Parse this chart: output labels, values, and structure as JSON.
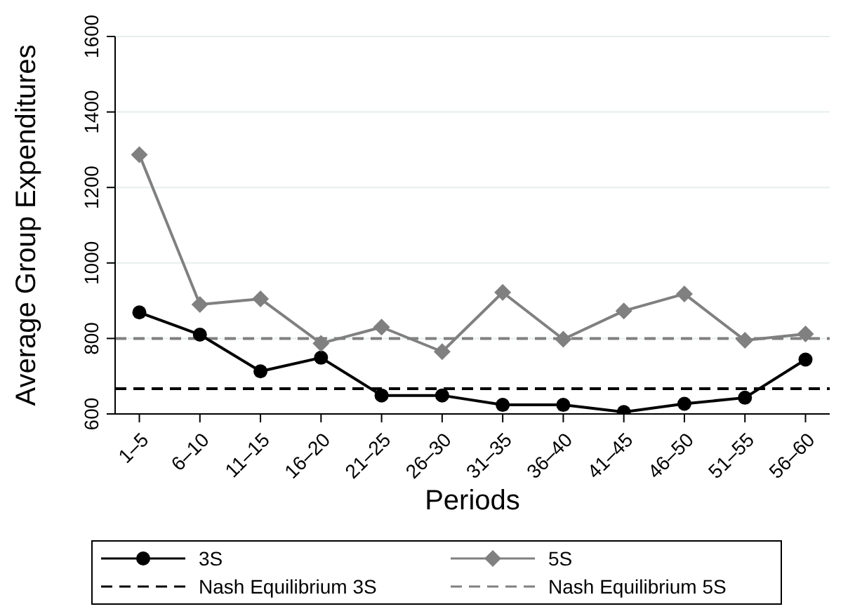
{
  "chart_data": {
    "type": "line",
    "xlabel": "Periods",
    "ylabel": "Average Group Expenditures",
    "categories": [
      "1–5",
      "6–10",
      "11–15",
      "16–20",
      "21–25",
      "26–30",
      "31–35",
      "36–40",
      "41–45",
      "46–50",
      "51–55",
      "56–60"
    ],
    "series": [
      {
        "name": "3S",
        "color": "#000000",
        "marker": "circle",
        "values": [
          869,
          810,
          713,
          749,
          649,
          649,
          624,
          624,
          605,
          627,
          643,
          744
        ]
      },
      {
        "name": "5S",
        "color": "#808080",
        "marker": "diamond",
        "values": [
          1287,
          890,
          905,
          787,
          830,
          765,
          922,
          798,
          873,
          918,
          795,
          812
        ]
      }
    ],
    "ref_lines": [
      {
        "axis": "y",
        "value": 667,
        "label": "Nash Equilibrium 3S",
        "color": "#000000",
        "line_style": "dashed"
      },
      {
        "axis": "y",
        "value": 800,
        "label": "Nash Equilibrium 5S",
        "color": "#808080",
        "line_style": "dashed"
      }
    ],
    "ylim": [
      600,
      1600
    ],
    "yticks": [
      600,
      800,
      1000,
      1200,
      1400,
      1600
    ],
    "grid": "y",
    "legend": "bottom"
  }
}
